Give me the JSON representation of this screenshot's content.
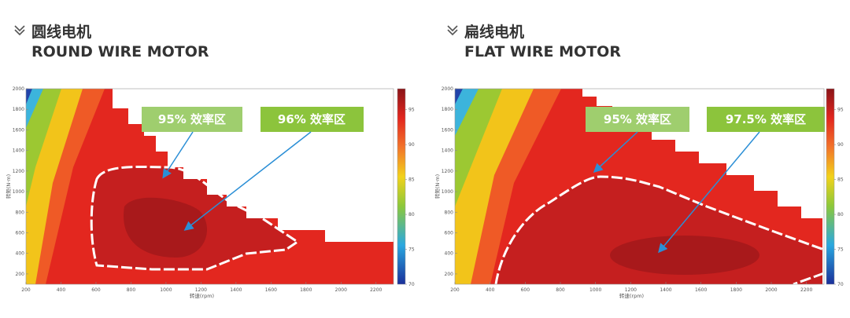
{
  "chart_data": [
    {
      "type": "contour",
      "heading_zh": "圆线电机",
      "heading_en": "ROUND WIRE MOTOR",
      "x_label": "转速(rpm)",
      "y_label": "转矩(N·m)",
      "xlim": [
        200,
        2300
      ],
      "xticks": [
        200,
        400,
        600,
        800,
        1000,
        1200,
        1400,
        1600,
        1800,
        2000,
        2200
      ],
      "ylim": [
        100,
        2000
      ],
      "yticks": [
        200,
        400,
        600,
        800,
        1000,
        1200,
        1400,
        1600,
        1800,
        2000
      ],
      "clim": [
        70,
        98
      ],
      "cticks": [
        70,
        75,
        80,
        85,
        90,
        95
      ],
      "callouts": [
        "95% 效率区",
        "96% 效率区"
      ]
    },
    {
      "type": "contour",
      "heading_zh": "扁线电机",
      "heading_en": "FLAT WIRE MOTOR",
      "x_label": "转速(rpm)",
      "y_label": "转矩(N·m)",
      "xlim": [
        200,
        2300
      ],
      "xticks": [
        200,
        400,
        600,
        800,
        1000,
        1200,
        1400,
        1600,
        1800,
        2000,
        2200
      ],
      "ylim": [
        100,
        2000
      ],
      "yticks": [
        200,
        400,
        600,
        800,
        1000,
        1200,
        1400,
        1600,
        1800,
        2000
      ],
      "clim": [
        70,
        98
      ],
      "cticks": [
        70,
        75,
        80,
        85,
        90,
        95
      ],
      "callouts": [
        "95% 效率区",
        "97.5% 效率区"
      ]
    }
  ]
}
